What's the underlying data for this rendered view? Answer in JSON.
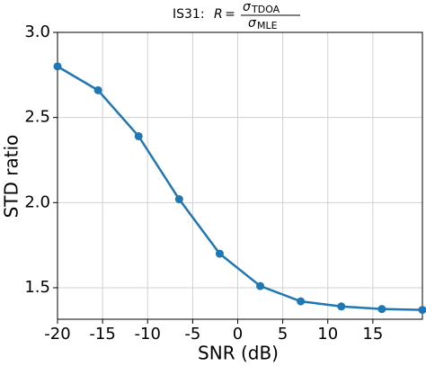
{
  "chart_data": {
    "type": "line",
    "title": {
      "text": "IS31:",
      "variable": "R",
      "relation": "=",
      "numerator": "σ",
      "numerator_sub": "TDOA",
      "denominator": "σ",
      "denominator_sub": "MLE"
    },
    "x_label": "SNR (dB)",
    "y_label": "STD ratio",
    "x": [
      -20,
      -15.5,
      -11,
      -6.5,
      -2,
      2.5,
      7,
      11.5,
      16,
      20.5
    ],
    "series": [
      {
        "name": "STD ratio",
        "color": "#1f77b4",
        "values": [
          2.8,
          2.66,
          2.39,
          2.02,
          1.7,
          1.51,
          1.42,
          1.39,
          1.375,
          1.37
        ]
      }
    ],
    "xlim": [
      -20,
      20.5
    ],
    "ylim": [
      1.315,
      3.0
    ],
    "xticks": [
      -20,
      -15,
      -10,
      -5,
      0,
      5,
      10,
      15
    ],
    "yticks": [
      {
        "value": 1.5,
        "label": "1.5"
      },
      {
        "value": 2.0,
        "label": "2.0"
      },
      {
        "value": 2.5,
        "label": "2.5"
      },
      {
        "value": 3.0,
        "label": "3.0"
      }
    ],
    "grid": true
  }
}
